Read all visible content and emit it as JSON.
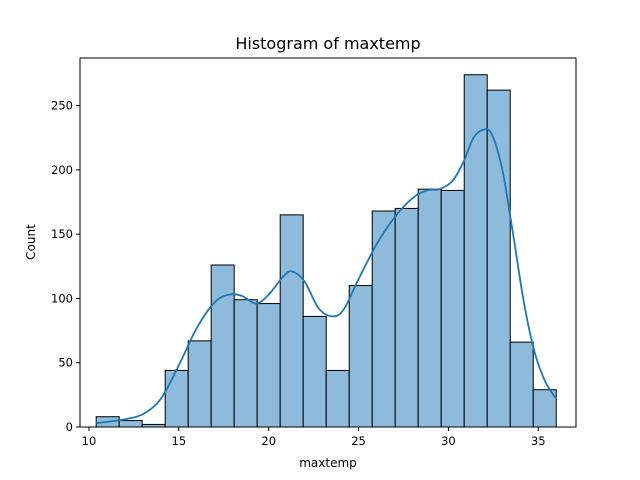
{
  "chart_data": {
    "type": "bar",
    "subtype": "histogram_with_kde",
    "title": "Histogram of maxtemp",
    "xlabel": "maxtemp",
    "ylabel": "Count",
    "xlim": [
      9.5,
      37.1
    ],
    "ylim": [
      0,
      287
    ],
    "x_ticks": [
      10,
      15,
      20,
      25,
      30,
      35
    ],
    "y_ticks": [
      0,
      50,
      100,
      150,
      200,
      250
    ],
    "grid": false,
    "legend": "none",
    "bar_color": "#8ebbdc",
    "bar_edge_color": "#000000",
    "kde_color": "#1f77b4",
    "bins": [
      {
        "x0": 10.4,
        "x1": 11.68,
        "count": 8
      },
      {
        "x0": 11.68,
        "x1": 12.96,
        "count": 5
      },
      {
        "x0": 12.96,
        "x1": 14.24,
        "count": 2
      },
      {
        "x0": 14.24,
        "x1": 15.52,
        "count": 44
      },
      {
        "x0": 15.52,
        "x1": 16.8,
        "count": 67
      },
      {
        "x0": 16.8,
        "x1": 18.08,
        "count": 126
      },
      {
        "x0": 18.08,
        "x1": 19.36,
        "count": 99
      },
      {
        "x0": 19.36,
        "x1": 20.64,
        "count": 96
      },
      {
        "x0": 20.64,
        "x1": 21.92,
        "count": 165
      },
      {
        "x0": 21.92,
        "x1": 23.2,
        "count": 86
      },
      {
        "x0": 23.2,
        "x1": 24.48,
        "count": 44
      },
      {
        "x0": 24.48,
        "x1": 25.76,
        "count": 110
      },
      {
        "x0": 25.76,
        "x1": 27.04,
        "count": 168
      },
      {
        "x0": 27.04,
        "x1": 28.32,
        "count": 170
      },
      {
        "x0": 28.32,
        "x1": 29.6,
        "count": 185
      },
      {
        "x0": 29.6,
        "x1": 30.88,
        "count": 184
      },
      {
        "x0": 30.88,
        "x1": 32.16,
        "count": 274
      },
      {
        "x0": 32.16,
        "x1": 33.44,
        "count": 262
      },
      {
        "x0": 33.44,
        "x1": 34.72,
        "count": 66
      },
      {
        "x0": 34.72,
        "x1": 36.0,
        "count": 29
      }
    ],
    "kde": {
      "x": [
        10.4,
        11.0,
        12.0,
        13.0,
        14.0,
        15.0,
        16.0,
        17.0,
        17.8,
        18.5,
        19.3,
        20.0,
        20.8,
        21.3,
        22.0,
        22.8,
        23.6,
        24.2,
        25.0,
        26.0,
        27.0,
        28.0,
        28.8,
        29.5,
        30.2,
        30.8,
        31.4,
        31.9,
        32.4,
        33.0,
        33.6,
        34.2,
        34.8,
        35.4,
        36.0
      ],
      "y": [
        3,
        4,
        6,
        10,
        22,
        48,
        77,
        97,
        103,
        102,
        96,
        103,
        117,
        121,
        113,
        92,
        86,
        92,
        115,
        142,
        163,
        178,
        184,
        185,
        191,
        205,
        225,
        231,
        228,
        200,
        150,
        97,
        58,
        35,
        22
      ]
    }
  }
}
